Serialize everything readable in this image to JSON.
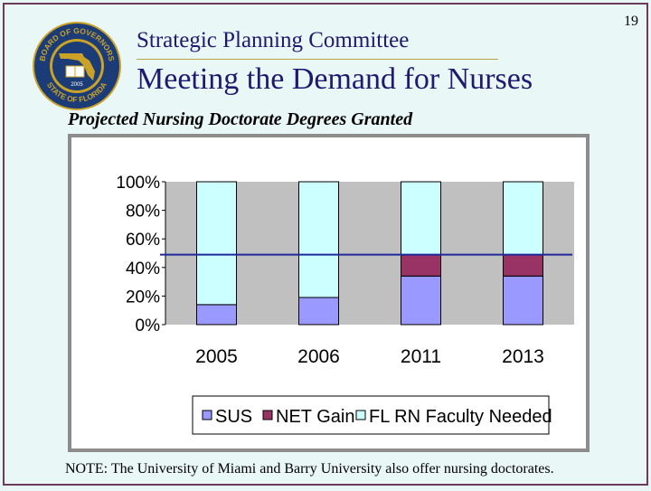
{
  "header": {
    "subtitle": "Strategic Planning Committee",
    "title": "Meeting the Demand for Nurses",
    "page_number": "19"
  },
  "seal": {
    "text_top": "BOARD OF GOVERNORS",
    "text_bottom": "STATE OF FLORIDA",
    "year": "2005"
  },
  "chart_heading": "Projected Nursing Doctorate Degrees Granted",
  "note": "NOTE: The University of Miami and Barry University also offer nursing doctorates.",
  "colors": {
    "sus": "#9999ff",
    "net_gain": "#993366",
    "faculty_needed": "#ccffff",
    "plot_bg": "#c0c0c0",
    "reference_line": "#1f2a9a"
  },
  "chart_data": {
    "type": "bar",
    "stacked": "percent",
    "categories": [
      "2005",
      "2006",
      "2011",
      "2013"
    ],
    "series": [
      {
        "name": "SUS",
        "values": [
          14,
          19,
          34,
          34
        ]
      },
      {
        "name": "NET Gain",
        "values": [
          0,
          0,
          15,
          15
        ]
      },
      {
        "name": "FL RN Faculty Needed",
        "values": [
          86,
          81,
          51,
          51
        ]
      }
    ],
    "y_ticks": [
      "100%",
      "80%",
      "60%",
      "40%",
      "20%",
      "0%"
    ],
    "ylim": [
      0,
      100
    ],
    "reference_line": 49,
    "legend_position": "bottom",
    "grid": false
  }
}
